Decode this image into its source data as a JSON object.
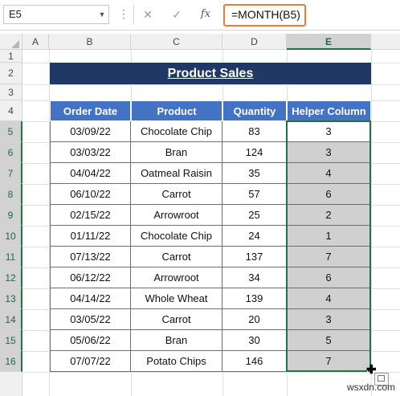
{
  "name_box": {
    "value": "E5"
  },
  "formula_bar": {
    "cancel_glyph": "✕",
    "enter_glyph": "✓",
    "fx_label": "fx",
    "formula": "=MONTH(B5)"
  },
  "columns": [
    "A",
    "B",
    "C",
    "D",
    "E"
  ],
  "rows": [
    "1",
    "2",
    "3",
    "4",
    "5",
    "6",
    "7",
    "8",
    "9",
    "10",
    "11",
    "12",
    "13",
    "14",
    "15",
    "16"
  ],
  "title": "Product Sales",
  "table": {
    "headers": [
      "Order Date",
      "Product",
      "Quantity",
      "Helper Column"
    ],
    "rows": [
      [
        "03/09/22",
        "Chocolate Chip",
        "83",
        "3"
      ],
      [
        "03/03/22",
        "Bran",
        "124",
        "3"
      ],
      [
        "04/04/22",
        "Oatmeal Raisin",
        "35",
        "4"
      ],
      [
        "06/10/22",
        "Carrot",
        "57",
        "6"
      ],
      [
        "02/15/22",
        "Arrowroot",
        "25",
        "2"
      ],
      [
        "01/11/22",
        "Chocolate Chip",
        "24",
        "1"
      ],
      [
        "07/13/22",
        "Carrot",
        "137",
        "7"
      ],
      [
        "06/12/22",
        "Arrowroot",
        "34",
        "6"
      ],
      [
        "04/14/22",
        "Whole Wheat",
        "139",
        "4"
      ],
      [
        "03/05/22",
        "Carrot",
        "20",
        "3"
      ],
      [
        "05/06/22",
        "Bran",
        "30",
        "5"
      ],
      [
        "07/07/22",
        "Potato Chips",
        "146",
        "7"
      ]
    ]
  },
  "colors": {
    "accent": "#217346",
    "header_fill": "#4472c4",
    "title_fill": "#203864",
    "formula_highlight": "#ed7d31"
  },
  "cursor_glyph": "✚",
  "watermark": "wsxdn.com"
}
